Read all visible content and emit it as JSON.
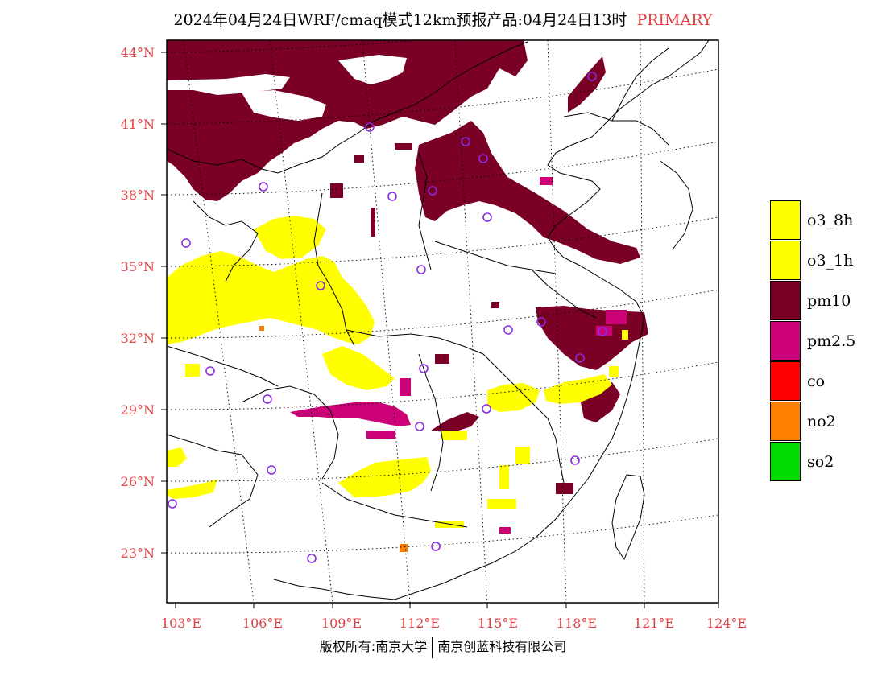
{
  "title": {
    "main": "2024年04月24日WRF/cmaq模式12km预报产品:04月24日13时",
    "tag": "PRIMARY"
  },
  "axes": {
    "lat_labels": [
      "44°N",
      "41°N",
      "38°N",
      "35°N",
      "32°N",
      "29°N",
      "26°N",
      "23°N"
    ],
    "lon_labels": [
      "103°E",
      "106°E",
      "109°E",
      "112°E",
      "115°E",
      "118°E",
      "121°E",
      "124°E"
    ],
    "label_color": "#e04040"
  },
  "legend": {
    "items": [
      {
        "label": "o3_8h",
        "color": "#ffff00"
      },
      {
        "label": "o3_1h",
        "color": "#ffff00"
      },
      {
        "label": "pm10",
        "color": "#7a0026"
      },
      {
        "label": "pm2.5",
        "color": "#cc0077"
      },
      {
        "label": "co",
        "color": "#ff0000"
      },
      {
        "label": "no2",
        "color": "#ff7f00"
      },
      {
        "label": "so2",
        "color": "#00dd00"
      }
    ]
  },
  "footer": {
    "left": "版权所有:南京大学",
    "right": "南京创蓝科技有限公司"
  },
  "colors": {
    "pm10": "#7a0026",
    "pm25": "#cc0077",
    "o3": "#ffff00",
    "no2": "#ff7f00",
    "station": "#8a2be2"
  }
}
